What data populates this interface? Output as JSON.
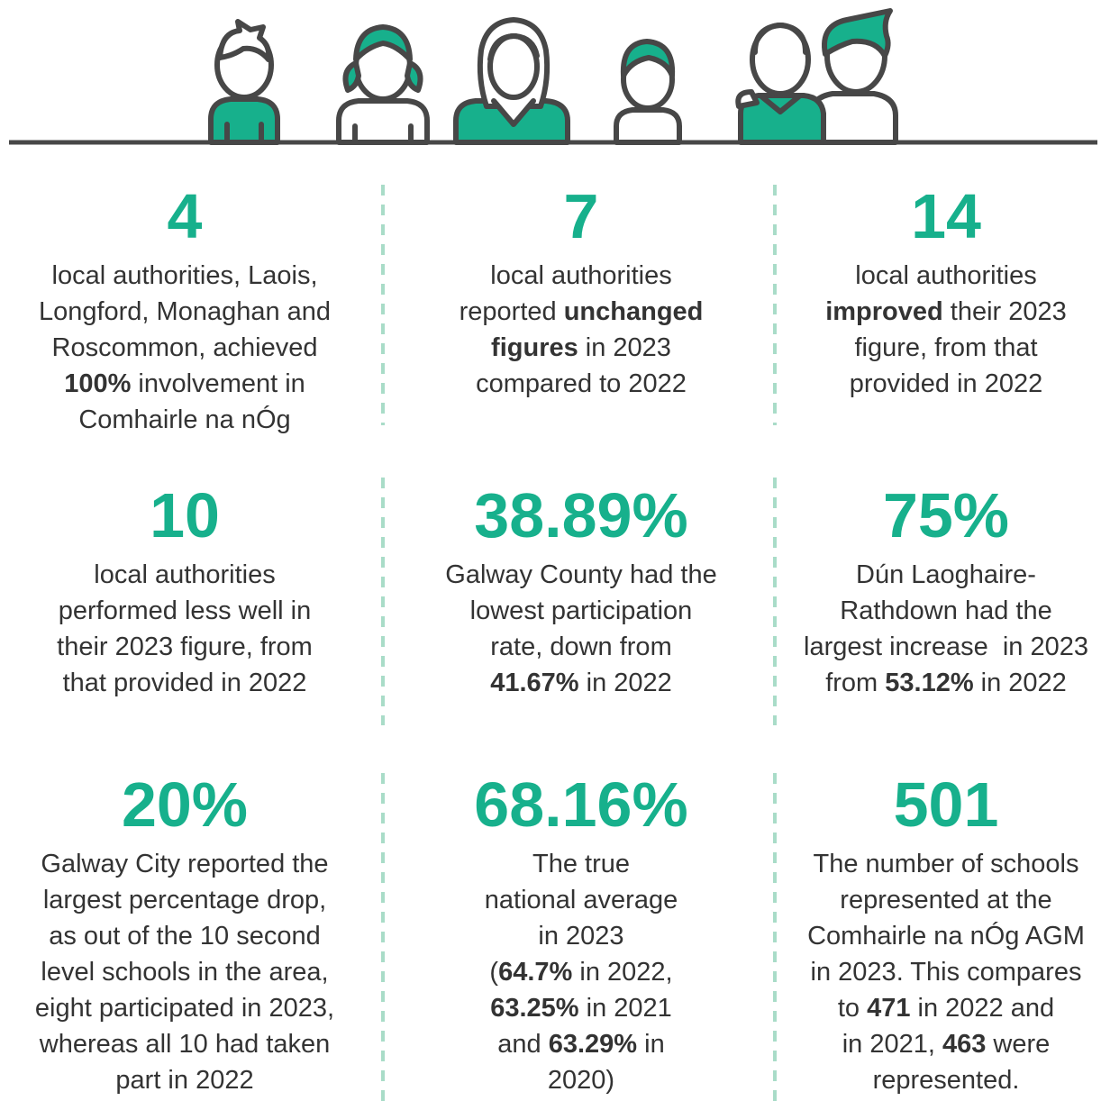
{
  "stats": [
    {
      "figure": "4",
      "lines": [
        [
          "local authorities, Laois,"
        ],
        [
          "Longford, Monaghan and"
        ],
        [
          "Roscommon, achieved"
        ],
        [
          {
            "text": "100%",
            "bold": true
          },
          " involvement in"
        ],
        [
          "Comhairle na nÓg"
        ]
      ]
    },
    {
      "figure": "7",
      "lines": [
        [
          "local authorities"
        ],
        [
          "reported ",
          {
            "text": "unchanged",
            "bold": true
          }
        ],
        [
          {
            "text": "figures",
            "bold": true
          },
          " in 2023"
        ],
        [
          "compared to 2022"
        ]
      ]
    },
    {
      "figure": "14",
      "lines": [
        [
          "local authorities"
        ],
        [
          {
            "text": "improved",
            "bold": true
          },
          " their 2023"
        ],
        [
          "figure, from that"
        ],
        [
          "provided in 2022"
        ]
      ]
    },
    {
      "figure": "10",
      "lines": [
        [
          "local authorities"
        ],
        [
          "performed less well in"
        ],
        [
          "their 2023 figure, from"
        ],
        [
          "that provided in 2022"
        ]
      ]
    },
    {
      "figure": "38.89%",
      "lines": [
        [
          "Galway County had the"
        ],
        [
          "lowest participation"
        ],
        [
          "rate, down from"
        ],
        [
          {
            "text": "41.67%",
            "bold": true
          },
          " in 2022"
        ]
      ]
    },
    {
      "figure": "75%",
      "lines": [
        [
          "Dún Laoghaire-"
        ],
        [
          "Rathdown had the"
        ],
        [
          "largest increase  in 2023"
        ],
        [
          "from ",
          {
            "text": "53.12%",
            "bold": true
          },
          " in 2022"
        ]
      ]
    },
    {
      "figure": "20%",
      "lines": [
        [
          "Galway City reported the"
        ],
        [
          "largest percentage drop,"
        ],
        [
          "as out of the 10 second"
        ],
        [
          "level schools in the area,"
        ],
        [
          "eight participated in 2023,"
        ],
        [
          "whereas all 10 had taken"
        ],
        [
          "part in 2022"
        ]
      ]
    },
    {
      "figure": "68.16%",
      "lines": [
        [
          "The true"
        ],
        [
          "national average"
        ],
        [
          "in 2023"
        ],
        [
          "(",
          {
            "text": "64.7%",
            "bold": true
          },
          " in 2022,"
        ],
        [
          {
            "text": "63.25%",
            "bold": true
          },
          " in 2021"
        ],
        [
          "and ",
          {
            "text": "63.29%",
            "bold": true
          },
          " in"
        ],
        [
          "2020)"
        ]
      ]
    },
    {
      "figure": "501",
      "lines": [
        [
          "The number of schools"
        ],
        [
          "represented at the"
        ],
        [
          "Comhairle na nÓg AGM"
        ],
        [
          "in 2023. This compares"
        ],
        [
          "to ",
          {
            "text": "471",
            "bold": true
          },
          " in 2022 and"
        ],
        [
          "in 2021, ",
          {
            "text": "463",
            "bold": true
          },
          " were"
        ],
        [
          "represented."
        ]
      ]
    }
  ]
}
